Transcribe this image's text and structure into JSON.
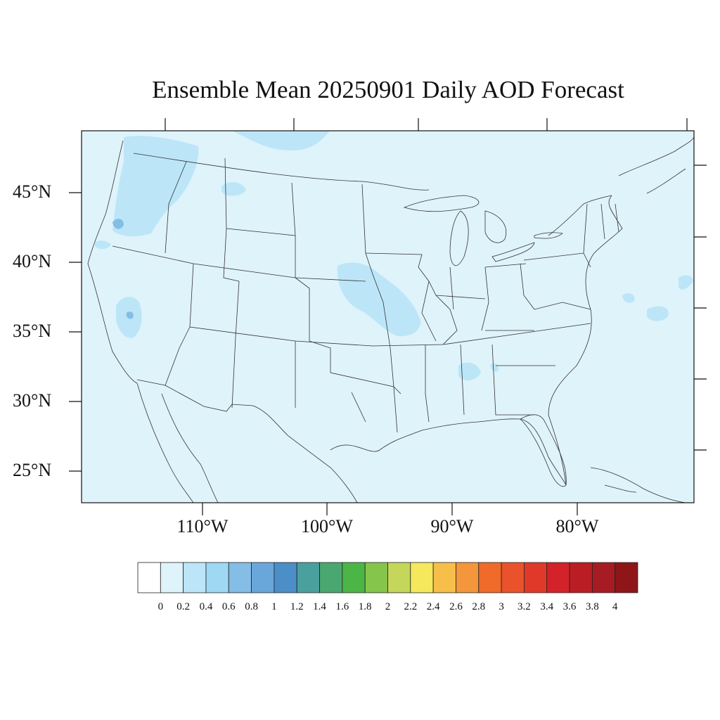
{
  "title": "Ensemble Mean 20250901 Daily AOD Forecast",
  "map": {
    "projection": "lambert-conic",
    "region": "CONUS",
    "background_color": "#dff3fb",
    "boundaries": "states and coastlines"
  },
  "lat_labels": [
    "45°N",
    "40°N",
    "35°N",
    "30°N",
    "25°N"
  ],
  "lon_labels": [
    "110°W",
    "100°W",
    "90°W",
    "80°W"
  ],
  "colorbar": {
    "labels": [
      "0",
      "0.2",
      "0.4",
      "0.6",
      "0.8",
      "1",
      "1.2",
      "1.4",
      "1.6",
      "1.8",
      "2",
      "2.2",
      "2.4",
      "2.6",
      "2.8",
      "3",
      "3.2",
      "3.4",
      "3.6",
      "3.8",
      "4"
    ],
    "colors": [
      "#ffffff",
      "#dff3fb",
      "#bce6f8",
      "#9ed8f3",
      "#84bde6",
      "#69a7db",
      "#4b8ec8",
      "#4aa09c",
      "#4aa770",
      "#4bb646",
      "#86c54b",
      "#c4d75a",
      "#f5e85c",
      "#f7be4a",
      "#f4963b",
      "#f06a2a",
      "#e9522b",
      "#e0392a",
      "#d32229",
      "#bb1d25",
      "#a71b23",
      "#8e1619"
    ]
  },
  "chart_data": {
    "type": "heatmap",
    "title": "Ensemble Mean 20250901 Daily AOD Forecast",
    "variable": "AOD",
    "value_range": [
      0,
      4
    ],
    "contour_levels": [
      0,
      0.2,
      0.4,
      0.6,
      0.8,
      1,
      1.2,
      1.4,
      1.6,
      1.8,
      2,
      2.2,
      2.4,
      2.6,
      2.8,
      3,
      3.2,
      3.4,
      3.6,
      3.8,
      4
    ],
    "background_level": "0-0.2",
    "features": [
      {
        "area": "Washington / Oregon",
        "range": "0.2-0.4"
      },
      {
        "area": "western Oregon hotspot",
        "range": "0.4-0.8"
      },
      {
        "area": "southern Nevada / California",
        "range": "0.2-0.6"
      },
      {
        "area": "Nebraska-Iowa-Kansas-Missouri",
        "range": "0.2-0.4"
      },
      {
        "area": "southern Canada plume",
        "range": "0.2-0.4"
      },
      {
        "area": "Alabama-Georgia",
        "range": "0.2-0.4"
      },
      {
        "area": "western Atlantic",
        "range": "0.2-0.4"
      }
    ]
  }
}
